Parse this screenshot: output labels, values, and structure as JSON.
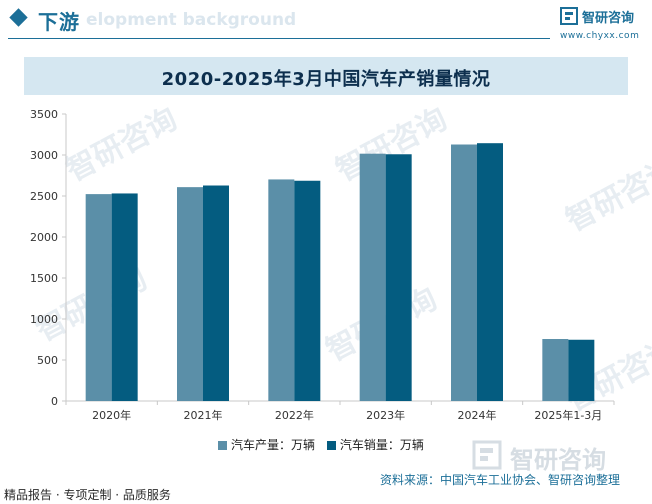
{
  "header": {
    "section_title": "下游",
    "background_text": "elopment background",
    "brand_name": "智研咨询",
    "brand_url": "www.chyxx.com"
  },
  "watermark_text": "智研咨询",
  "chart_data": {
    "type": "bar",
    "title": "2020-2025年3月中国汽车产销量情况",
    "categories": [
      "2020年",
      "2021年",
      "2022年",
      "2023年",
      "2024年",
      "2025年1-3月"
    ],
    "series": [
      {
        "name": "汽车产量：万辆",
        "values": [
          2523,
          2608,
          2702,
          3016,
          3128,
          756
        ],
        "color": "#5b8fa8"
      },
      {
        "name": "汽车销量：万辆",
        "values": [
          2531,
          2628,
          2686,
          3009,
          3144,
          747
        ],
        "color": "#045c80"
      }
    ],
    "ylim": [
      0,
      3500
    ],
    "yticks": [
      0,
      500,
      1000,
      1500,
      2000,
      2500,
      3000,
      3500
    ],
    "xlabel": "",
    "ylabel": "",
    "grid": false,
    "legend_position": "bottom"
  },
  "footer": {
    "left_text": "精品报告 · 专项定制 · 品质服务",
    "source_text": "资料来源：中国汽车工业协会、智研咨询整理"
  }
}
